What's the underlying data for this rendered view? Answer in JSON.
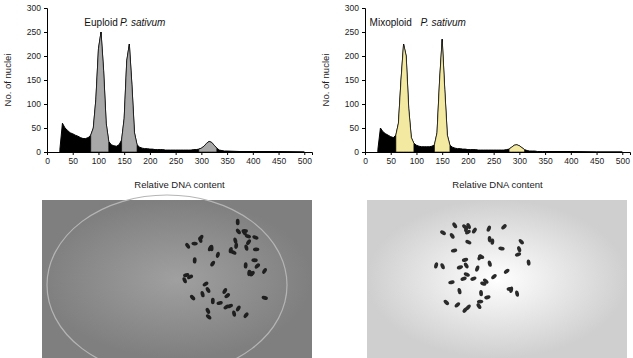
{
  "chart_data": [
    {
      "type": "area",
      "xlabel": "Relative DNA content",
      "ylabel": "No. of nuclei",
      "xlim": [
        0,
        515
      ],
      "ylim": [
        0,
        300
      ],
      "xticks": [
        0,
        50,
        100,
        150,
        200,
        250,
        300,
        350,
        400,
        450,
        500
      ],
      "yticks": [
        0,
        50,
        100,
        150,
        200,
        250,
        300
      ],
      "annotations": [
        {
          "text": "Euploid",
          "x": 105,
          "y": 262
        },
        {
          "text": "P. sativum",
          "x": 186,
          "y": 262
        }
      ],
      "x": [
        25,
        30,
        35,
        40,
        45,
        50,
        55,
        60,
        65,
        70,
        75,
        80,
        85,
        90,
        95,
        100,
        105,
        110,
        115,
        120,
        125,
        130,
        135,
        140,
        145,
        150,
        155,
        160,
        165,
        170,
        175,
        180,
        185,
        190,
        195,
        200,
        205,
        210,
        215,
        220,
        225,
        230,
        235,
        240,
        245,
        250,
        255,
        260,
        265,
        270,
        275,
        280,
        285,
        290,
        295,
        300,
        305,
        310,
        315,
        320,
        325,
        330,
        335,
        340,
        345,
        350,
        375,
        400,
        450,
        500
      ],
      "series": [
        {
          "color": "#000000",
          "values": [
            5,
            60,
            50,
            45,
            40,
            38,
            35,
            33,
            30,
            28,
            28,
            30,
            35,
            50,
            110,
            215,
            250,
            170,
            60,
            22,
            15,
            13,
            12,
            15,
            25,
            70,
            190,
            225,
            140,
            40,
            15,
            10,
            8,
            7,
            7,
            6,
            6,
            5,
            5,
            5,
            5,
            4,
            4,
            4,
            4,
            4,
            4,
            4,
            4,
            4,
            4,
            4,
            5,
            5,
            6,
            8,
            12,
            18,
            22,
            20,
            14,
            8,
            4,
            3,
            2,
            2,
            1,
            1,
            1,
            0
          ]
        },
        {
          "color": "#a8a8a8",
          "values": [
            null,
            null,
            null,
            null,
            null,
            null,
            null,
            null,
            null,
            null,
            null,
            null,
            35,
            50,
            110,
            215,
            250,
            170,
            60,
            22,
            null,
            null,
            null,
            null,
            25,
            70,
            190,
            225,
            140,
            40,
            15,
            null,
            null,
            null,
            null,
            null,
            null,
            null,
            null,
            null,
            null,
            null,
            null,
            null,
            null,
            null,
            null,
            null,
            null,
            null,
            null,
            null,
            null,
            null,
            6,
            8,
            12,
            18,
            22,
            20,
            14,
            8,
            null,
            null,
            null,
            null,
            null,
            null,
            null,
            null
          ]
        }
      ]
    },
    {
      "type": "area",
      "xlabel": "Relative DNA content",
      "ylabel": "No. of nuclei",
      "xlim": [
        0,
        515
      ],
      "ylim": [
        0,
        300
      ],
      "xticks": [
        0,
        50,
        100,
        150,
        200,
        250,
        300,
        350,
        400,
        450,
        500
      ],
      "yticks": [
        0,
        50,
        100,
        150,
        200,
        250,
        300
      ],
      "annotations": [
        {
          "text": "Mixoploid",
          "x": 50,
          "y": 262
        },
        {
          "text": "P. sativum",
          "x": 152,
          "y": 262
        }
      ],
      "x": [
        25,
        30,
        35,
        40,
        45,
        50,
        55,
        60,
        65,
        70,
        75,
        80,
        85,
        90,
        95,
        100,
        105,
        110,
        115,
        120,
        125,
        130,
        135,
        140,
        145,
        150,
        155,
        160,
        165,
        170,
        175,
        180,
        185,
        190,
        195,
        200,
        205,
        210,
        215,
        220,
        225,
        230,
        235,
        240,
        245,
        250,
        255,
        260,
        265,
        270,
        275,
        280,
        285,
        290,
        295,
        300,
        305,
        310,
        315,
        320,
        325,
        330,
        335,
        340,
        345,
        350,
        375,
        400,
        450,
        500
      ],
      "series": [
        {
          "color": "#000000",
          "values": [
            5,
            50,
            42,
            38,
            35,
            32,
            30,
            35,
            60,
            150,
            225,
            200,
            90,
            30,
            18,
            14,
            12,
            11,
            11,
            11,
            11,
            12,
            15,
            40,
            150,
            235,
            130,
            35,
            14,
            10,
            8,
            7,
            7,
            6,
            6,
            5,
            5,
            5,
            5,
            4,
            4,
            4,
            4,
            4,
            4,
            4,
            4,
            4,
            4,
            4,
            5,
            6,
            10,
            14,
            15,
            13,
            9,
            5,
            3,
            2,
            2,
            2,
            1,
            1,
            1,
            1,
            1,
            1,
            0,
            0
          ]
        },
        {
          "color": "#f3e9a0",
          "values": [
            null,
            null,
            null,
            null,
            null,
            null,
            null,
            35,
            60,
            150,
            225,
            200,
            90,
            30,
            18,
            null,
            null,
            null,
            null,
            null,
            null,
            null,
            15,
            40,
            150,
            235,
            130,
            35,
            14,
            null,
            null,
            null,
            null,
            null,
            null,
            null,
            null,
            null,
            null,
            null,
            null,
            null,
            null,
            null,
            null,
            null,
            null,
            null,
            null,
            null,
            null,
            6,
            10,
            14,
            15,
            13,
            9,
            5,
            null,
            null,
            null,
            null,
            null,
            null,
            null,
            null,
            null,
            null,
            null,
            null
          ]
        }
      ]
    }
  ]
}
